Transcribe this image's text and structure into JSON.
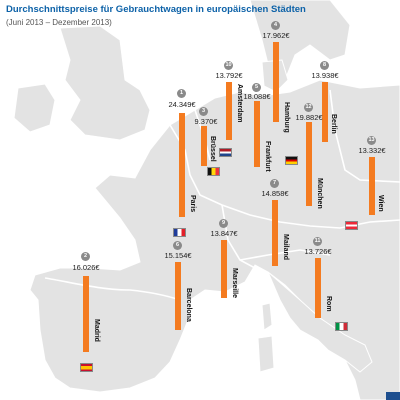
{
  "header": {
    "title": "Durchschnittspreise für Gebrauchtwagen in europäischen Städten",
    "subtitle": "(Juni 2013 – Dezember 2013)"
  },
  "colors": {
    "bar": "#f47b20",
    "land": "#e3e3e3",
    "sea": "#ffffff",
    "title": "#0d62a8"
  },
  "cities": [
    {
      "rank": "1",
      "name": "Paris",
      "price": "24.349€",
      "value": 24349,
      "flag": "flag-france"
    },
    {
      "rank": "2",
      "name": "Madrid",
      "price": "16.026€",
      "value": 16026,
      "flag": "flag-spain"
    },
    {
      "rank": "3",
      "name": "Brüssel",
      "price": "9.370€",
      "value": 9370,
      "flag": "flag-belgium"
    },
    {
      "rank": "4",
      "name": "Hamburg",
      "price": "17.962€",
      "value": 17962,
      "flag": ""
    },
    {
      "rank": "5",
      "name": "Frankfurt",
      "price": "18.088€",
      "value": 18088,
      "flag": ""
    },
    {
      "rank": "6",
      "name": "Barcelona",
      "price": "15.154€",
      "value": 15154,
      "flag": ""
    },
    {
      "rank": "7",
      "name": "Mailand",
      "price": "14.858€",
      "value": 14858,
      "flag": ""
    },
    {
      "rank": "8",
      "name": "Berlin",
      "price": "13.938€",
      "value": 13938,
      "flag": "flag-germany"
    },
    {
      "rank": "9",
      "name": "Marseille",
      "price": "13.847€",
      "value": 13847,
      "flag": ""
    },
    {
      "rank": "10",
      "name": "Amsterdam",
      "price": "13.792€",
      "value": 13792,
      "flag": "flag-netherlands"
    },
    {
      "rank": "11",
      "name": "Rom",
      "price": "13.726€",
      "value": 13726,
      "flag": "flag-italy"
    },
    {
      "rank": "12",
      "name": "München",
      "price": "19.882€",
      "value": 19882,
      "flag": ""
    },
    {
      "rank": "13",
      "name": "Wien",
      "price": "13.332€",
      "value": 13332,
      "flag": "flag-austria"
    }
  ]
}
